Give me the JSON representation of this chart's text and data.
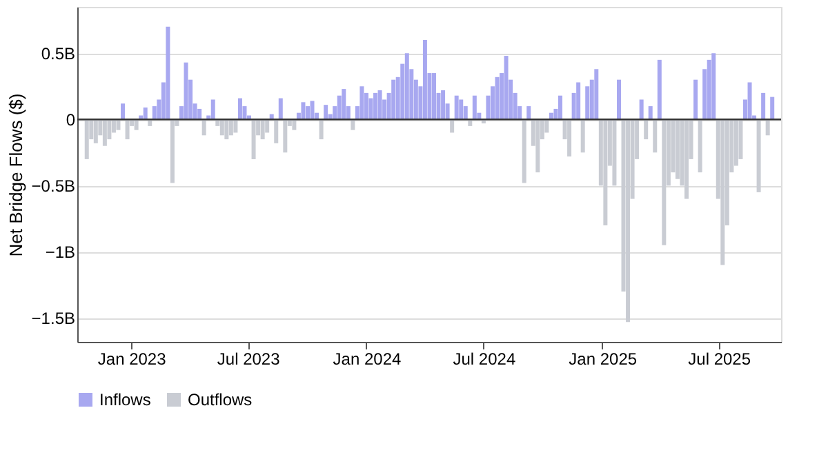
{
  "chart_data": {
    "type": "bar",
    "ylabel": "Net Bridge Flows ($)",
    "x": [
      "2022-10-24",
      "2022-10-31",
      "2022-11-07",
      "2022-11-14",
      "2022-11-21",
      "2022-11-28",
      "2022-12-05",
      "2022-12-12",
      "2022-12-19",
      "2022-12-26",
      "2023-01-02",
      "2023-01-09",
      "2023-01-16",
      "2023-01-23",
      "2023-01-30",
      "2023-02-06",
      "2023-02-13",
      "2023-02-20",
      "2023-02-27",
      "2023-03-06",
      "2023-03-13",
      "2023-03-20",
      "2023-03-27",
      "2023-04-03",
      "2023-04-10",
      "2023-04-17",
      "2023-04-24",
      "2023-05-01",
      "2023-05-08",
      "2023-05-15",
      "2023-05-22",
      "2023-05-29",
      "2023-06-05",
      "2023-06-12",
      "2023-06-19",
      "2023-06-26",
      "2023-07-03",
      "2023-07-10",
      "2023-07-17",
      "2023-07-24",
      "2023-07-31",
      "2023-08-07",
      "2023-08-14",
      "2023-08-21",
      "2023-08-28",
      "2023-09-04",
      "2023-09-11",
      "2023-09-18",
      "2023-09-25",
      "2023-10-02",
      "2023-10-09",
      "2023-10-16",
      "2023-10-23",
      "2023-10-30",
      "2023-11-06",
      "2023-11-13",
      "2023-11-20",
      "2023-11-27",
      "2023-12-04",
      "2023-12-11",
      "2023-12-18",
      "2023-12-25",
      "2024-01-01",
      "2024-01-08",
      "2024-01-15",
      "2024-01-22",
      "2024-01-29",
      "2024-02-05",
      "2024-02-12",
      "2024-02-19",
      "2024-02-26",
      "2024-03-04",
      "2024-03-11",
      "2024-03-18",
      "2024-03-25",
      "2024-04-01",
      "2024-04-08",
      "2024-04-15",
      "2024-04-22",
      "2024-04-29",
      "2024-05-06",
      "2024-05-13",
      "2024-05-20",
      "2024-05-27",
      "2024-06-03",
      "2024-06-10",
      "2024-06-17",
      "2024-06-24",
      "2024-07-01",
      "2024-07-08",
      "2024-07-15",
      "2024-07-22",
      "2024-07-29",
      "2024-08-05",
      "2024-08-12",
      "2024-08-19",
      "2024-08-26",
      "2024-09-02",
      "2024-09-09",
      "2024-09-16",
      "2024-09-23",
      "2024-09-30",
      "2024-10-07",
      "2024-10-14",
      "2024-10-21",
      "2024-10-28",
      "2024-11-04",
      "2024-11-11",
      "2024-11-18",
      "2024-11-25",
      "2024-12-02",
      "2024-12-09",
      "2024-12-16",
      "2024-12-23",
      "2024-12-30",
      "2025-01-06",
      "2025-01-13",
      "2025-01-20",
      "2025-01-27",
      "2025-02-03",
      "2025-02-10",
      "2025-02-17",
      "2025-02-24",
      "2025-03-03",
      "2025-03-10",
      "2025-03-17",
      "2025-03-24",
      "2025-03-31",
      "2025-04-07",
      "2025-04-14",
      "2025-04-21",
      "2025-04-28",
      "2025-05-05",
      "2025-05-12",
      "2025-05-19",
      "2025-05-26",
      "2025-06-02",
      "2025-06-09",
      "2025-06-16",
      "2025-06-23",
      "2025-06-30",
      "2025-07-07",
      "2025-07-14",
      "2025-07-21",
      "2025-07-28",
      "2025-08-04",
      "2025-08-11",
      "2025-08-18",
      "2025-08-25",
      "2025-09-01",
      "2025-09-08",
      "2025-09-15",
      "2025-09-22"
    ],
    "series": [
      {
        "name": "Inflows",
        "color": "#a8a8f0",
        "values": [
          null,
          null,
          null,
          null,
          null,
          null,
          null,
          null,
          0.12,
          null,
          null,
          null,
          0.03,
          0.09,
          null,
          0.1,
          0.15,
          0.28,
          0.7,
          null,
          null,
          0.1,
          0.43,
          0.3,
          0.12,
          0.08,
          null,
          0.03,
          0.15,
          null,
          null,
          null,
          null,
          null,
          0.16,
          0.1,
          0.03,
          null,
          null,
          null,
          null,
          0.04,
          null,
          0.16,
          null,
          null,
          null,
          0.05,
          0.13,
          0.1,
          0.14,
          0.05,
          null,
          0.11,
          0.04,
          0.1,
          0.18,
          0.23,
          0.1,
          null,
          0.1,
          0.25,
          0.2,
          0.16,
          0.2,
          0.22,
          0.15,
          0.2,
          0.3,
          0.32,
          0.42,
          0.5,
          0.38,
          0.3,
          0.25,
          0.6,
          0.35,
          0.35,
          0.2,
          0.22,
          0.12,
          null,
          0.18,
          0.15,
          0.1,
          null,
          0.18,
          0.05,
          null,
          0.18,
          0.25,
          0.32,
          0.35,
          0.48,
          0.3,
          0.2,
          0.1,
          null,
          0.1,
          null,
          null,
          null,
          null,
          0.05,
          0.08,
          0.18,
          null,
          null,
          0.2,
          0.28,
          null,
          0.25,
          0.3,
          0.38,
          null,
          null,
          null,
          null,
          0.3,
          null,
          null,
          null,
          null,
          0.15,
          null,
          0.1,
          null,
          0.45,
          null,
          null,
          null,
          null,
          null,
          null,
          null,
          0.3,
          null,
          0.38,
          0.45,
          0.5,
          null,
          null,
          null,
          null,
          null,
          null,
          0.15,
          0.28,
          0.03,
          null,
          0.2,
          null,
          0.17
        ]
      },
      {
        "name": "Outflows",
        "color": "#c9ccd3",
        "values": [
          -0.3,
          -0.15,
          -0.18,
          -0.12,
          -0.2,
          -0.15,
          -0.1,
          -0.08,
          null,
          -0.15,
          -0.05,
          -0.08,
          null,
          null,
          -0.05,
          null,
          null,
          null,
          null,
          -0.48,
          -0.05,
          null,
          null,
          null,
          null,
          null,
          -0.12,
          null,
          null,
          -0.05,
          -0.12,
          -0.15,
          -0.12,
          -0.1,
          null,
          null,
          null,
          -0.3,
          -0.12,
          -0.15,
          -0.1,
          null,
          -0.18,
          null,
          -0.25,
          -0.05,
          -0.08,
          null,
          null,
          null,
          null,
          null,
          -0.15,
          null,
          null,
          null,
          null,
          null,
          null,
          -0.08,
          null,
          null,
          null,
          null,
          null,
          null,
          null,
          null,
          null,
          null,
          null,
          null,
          null,
          null,
          null,
          null,
          null,
          null,
          null,
          null,
          null,
          -0.1,
          null,
          null,
          null,
          -0.05,
          null,
          null,
          -0.03,
          null,
          null,
          null,
          null,
          null,
          null,
          null,
          null,
          -0.48,
          null,
          -0.2,
          -0.4,
          -0.15,
          -0.1,
          null,
          null,
          null,
          -0.15,
          -0.28,
          null,
          null,
          -0.25,
          null,
          null,
          null,
          -0.5,
          -0.8,
          -0.35,
          -0.5,
          null,
          -1.3,
          -1.53,
          -0.6,
          -0.3,
          null,
          -0.15,
          null,
          -0.25,
          null,
          -0.95,
          -0.5,
          -0.4,
          -0.45,
          -0.5,
          -0.6,
          -0.3,
          null,
          -0.4,
          null,
          null,
          null,
          -0.6,
          -1.1,
          -0.8,
          -0.4,
          -0.35,
          -0.3,
          null,
          null,
          null,
          -0.55,
          null,
          -0.12,
          null
        ]
      }
    ],
    "xlim": [
      "2022-10-20",
      "2025-09-25"
    ],
    "xticks": [
      {
        "value": "2023-01-01",
        "label": "Jan 2023"
      },
      {
        "value": "2023-07-01",
        "label": "Jul 2023"
      },
      {
        "value": "2024-01-01",
        "label": "Jan 2024"
      },
      {
        "value": "2024-07-01",
        "label": "Jul 2024"
      },
      {
        "value": "2025-01-01",
        "label": "Jan 2025"
      },
      {
        "value": "2025-07-01",
        "label": "Jul 2025"
      }
    ],
    "ylim": [
      -1.68,
      0.85
    ],
    "yticks": [
      {
        "value": -1.5,
        "label": "−1.5B"
      },
      {
        "value": -1,
        "label": "−1B"
      },
      {
        "value": -0.5,
        "label": "−0.5B"
      },
      0,
      {
        "value": 0.5,
        "label": "0.5B"
      }
    ],
    "ref_lines": [
      {
        "axis": "y",
        "value": 0,
        "color": "#333333"
      }
    ],
    "grid": "y",
    "legend": "bottom"
  }
}
